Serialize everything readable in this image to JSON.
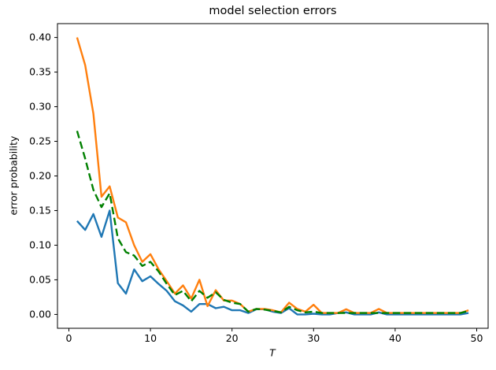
{
  "chart_data": {
    "type": "line",
    "title": "model selection errors",
    "xlabel": "T",
    "ylabel": "error probability",
    "xlim": [
      -1.4,
      51.4
    ],
    "ylim": [
      -0.02,
      0.42
    ],
    "grid": false,
    "legend": "none",
    "x_ticks": [
      0,
      10,
      20,
      30,
      40,
      50
    ],
    "x_tick_labels": [
      "0",
      "10",
      "20",
      "30",
      "40",
      "50"
    ],
    "y_ticks": [
      0.0,
      0.05,
      0.1,
      0.15,
      0.2,
      0.25,
      0.3,
      0.35,
      0.4
    ],
    "y_tick_labels": [
      "0.00",
      "0.05",
      "0.10",
      "0.15",
      "0.20",
      "0.25",
      "0.30",
      "0.35",
      "0.40"
    ],
    "x": [
      1,
      2,
      3,
      4,
      5,
      6,
      7,
      8,
      9,
      10,
      11,
      12,
      13,
      14,
      15,
      16,
      17,
      18,
      19,
      20,
      21,
      22,
      23,
      24,
      25,
      26,
      27,
      28,
      29,
      30,
      31,
      32,
      33,
      34,
      35,
      36,
      37,
      38,
      39,
      40,
      41,
      42,
      43,
      44,
      45,
      46,
      47,
      48,
      49
    ],
    "series": [
      {
        "name": "blue-solid",
        "color": "#1f77b4",
        "dash": "solid",
        "values": [
          0.135,
          0.122,
          0.145,
          0.112,
          0.15,
          0.045,
          0.03,
          0.065,
          0.048,
          0.055,
          0.044,
          0.034,
          0.019,
          0.013,
          0.004,
          0.015,
          0.015,
          0.009,
          0.011,
          0.006,
          0.006,
          0.002,
          0.0075,
          0.0075,
          0.004,
          0.002,
          0.009,
          0.0,
          0.0,
          0.001,
          0.0,
          0.0,
          0.002,
          0.003,
          0.0,
          0.0,
          0.0,
          0.003,
          0.0,
          0.0,
          0.0,
          0.0,
          0.0,
          0.0,
          0.0,
          0.0,
          0.0,
          0.0,
          0.002
        ]
      },
      {
        "name": "orange-solid",
        "color": "#ff7f0e",
        "dash": "solid",
        "values": [
          0.4,
          0.36,
          0.29,
          0.17,
          0.185,
          0.14,
          0.133,
          0.1,
          0.076,
          0.087,
          0.065,
          0.048,
          0.03,
          0.042,
          0.023,
          0.05,
          0.012,
          0.035,
          0.02,
          0.02,
          0.015,
          0.004,
          0.008,
          0.008,
          0.006,
          0.003,
          0.017,
          0.008,
          0.004,
          0.014,
          0.002,
          0.002,
          0.002,
          0.0075,
          0.002,
          0.002,
          0.002,
          0.008,
          0.002,
          0.002,
          0.002,
          0.002,
          0.002,
          0.002,
          0.002,
          0.002,
          0.002,
          0.002,
          0.006
        ]
      },
      {
        "name": "green-dashed",
        "color": "#008000",
        "dash": "dashed",
        "values": [
          0.265,
          0.225,
          0.18,
          0.155,
          0.175,
          0.11,
          0.09,
          0.085,
          0.07,
          0.076,
          0.062,
          0.044,
          0.028,
          0.034,
          0.019,
          0.034,
          0.024,
          0.032,
          0.021,
          0.017,
          0.015,
          0.004,
          0.008,
          0.007,
          0.005,
          0.003,
          0.011,
          0.006,
          0.003,
          0.004,
          0.002,
          0.002,
          0.002,
          0.002,
          0.002,
          0.002,
          0.002,
          0.002,
          0.002,
          0.002,
          0.002,
          0.002,
          0.002,
          0.002,
          0.002,
          0.002,
          0.002,
          0.002,
          0.005
        ]
      }
    ],
    "colors": {
      "spine": "#000000",
      "background": "#ffffff"
    }
  }
}
